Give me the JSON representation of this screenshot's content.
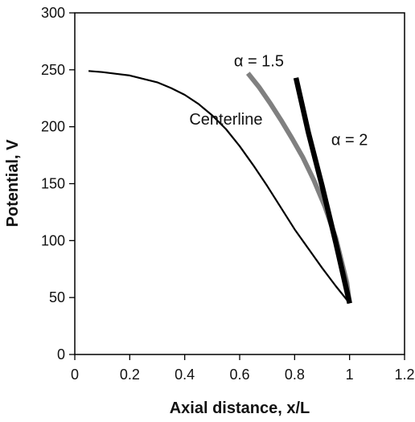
{
  "chart_data": {
    "type": "line",
    "title": "",
    "xlabel": "Axial distance, x/L",
    "ylabel": "Potential, V",
    "xlim": [
      0,
      1.2
    ],
    "ylim": [
      0,
      300
    ],
    "xticks": [
      0,
      0.2,
      0.4,
      0.6,
      0.8,
      1,
      1.2
    ],
    "yticks": [
      0,
      50,
      100,
      150,
      200,
      250,
      300
    ],
    "xtick_labels": [
      "0",
      "0.2",
      "0.4",
      "0.6",
      "0.8",
      "1",
      "1.2"
    ],
    "ytick_labels": [
      "0",
      "50",
      "100",
      "150",
      "200",
      "250",
      "300"
    ],
    "grid": false,
    "legend": "none",
    "series": [
      {
        "label": "Centerline",
        "color": "#000000",
        "x": [
          0.05,
          0.1,
          0.15,
          0.2,
          0.25,
          0.3,
          0.35,
          0.4,
          0.45,
          0.5,
          0.55,
          0.6,
          0.65,
          0.7,
          0.75,
          0.8,
          0.85,
          0.9,
          0.95,
          1.0
        ],
        "y": [
          249,
          248,
          246.5,
          245,
          242,
          239,
          234,
          228,
          220,
          210,
          198,
          183,
          166,
          148,
          129,
          110,
          93,
          76,
          60,
          45
        ]
      },
      {
        "label": "α = 1.5",
        "color": "#808080",
        "x": [
          0.63,
          0.67,
          0.71,
          0.75,
          0.79,
          0.83,
          0.87,
          0.91,
          0.95,
          0.99,
          1.0
        ],
        "y": [
          247,
          235,
          221,
          206,
          190,
          173,
          153,
          130,
          102,
          63,
          45
        ]
      },
      {
        "label": "α = 2",
        "color": "#000000",
        "x": [
          0.805,
          0.85,
          0.9,
          0.95,
          1.0
        ],
        "y": [
          243,
          195,
          148,
          98,
          45
        ]
      }
    ],
    "annotations": [
      {
        "text": "Centerline",
        "x": 0.55,
        "y": 202
      },
      {
        "text": "α = 1.5",
        "x": 0.67,
        "y": 253
      },
      {
        "text": "α = 2",
        "x": 1.0,
        "y": 184
      }
    ]
  }
}
